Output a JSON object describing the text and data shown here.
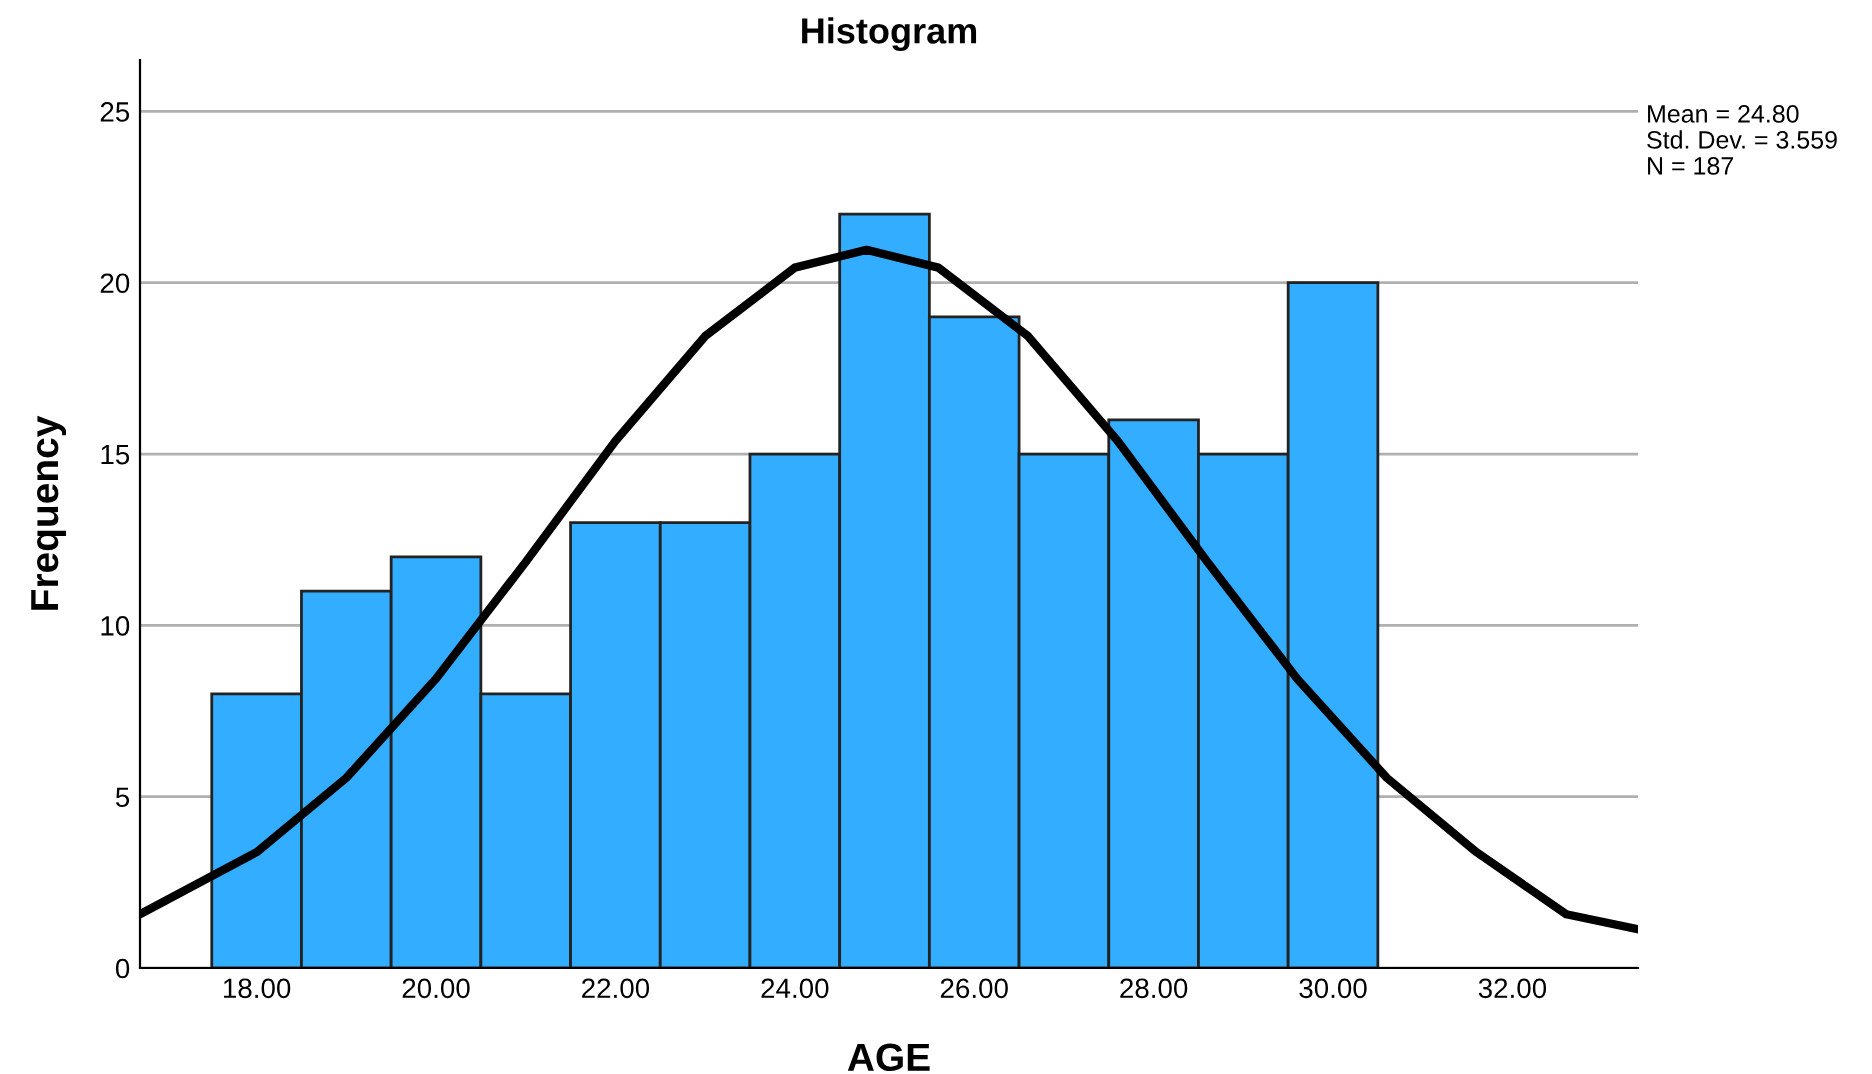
{
  "chart_data": {
    "type": "histogram",
    "title": "Histogram",
    "xlabel": "AGE",
    "ylabel": "Frequency",
    "series": [
      {
        "type": "histogram",
        "color": "#33adff",
        "bins": [
          17.5,
          18.5,
          19.5,
          20.5,
          21.5,
          22.5,
          23.5,
          24.5,
          25.5,
          26.5,
          27.5,
          28.5,
          29.5,
          30.5
        ],
        "values": [
          8,
          11,
          12,
          8,
          13,
          13,
          15,
          22,
          19,
          15,
          16,
          15,
          20
        ]
      },
      {
        "type": "line",
        "color": "#000000",
        "x": [
          16.7,
          18,
          19,
          20,
          21,
          22,
          23,
          24,
          24.8,
          25.6,
          26.6,
          27.6,
          28.6,
          29.6,
          30.6,
          31.6,
          32.6,
          33.4
        ],
        "values": [
          1.57,
          3.38,
          5.55,
          8.44,
          11.85,
          15.38,
          18.44,
          20.44,
          20.96,
          20.44,
          18.44,
          15.38,
          11.85,
          8.44,
          5.55,
          3.38,
          1.57,
          1.13
        ]
      }
    ],
    "xlim": [
      16.7,
      33.4
    ],
    "xticks": [
      {
        "value": 18,
        "label": "18.00"
      },
      {
        "value": 20,
        "label": "20.00"
      },
      {
        "value": 22,
        "label": "22.00"
      },
      {
        "value": 24,
        "label": "24.00"
      },
      {
        "value": 26,
        "label": "26.00"
      },
      {
        "value": 28,
        "label": "28.00"
      },
      {
        "value": 30,
        "label": "30.00"
      },
      {
        "value": 32,
        "label": "32.00"
      }
    ],
    "ylim": [
      0,
      26.5
    ],
    "yticks": [
      0,
      5,
      10,
      15,
      20,
      25
    ],
    "grid": "y",
    "annotations": [
      "Mean = 24.80",
      "Std. Dev. = 3.559",
      "N = 187"
    ]
  }
}
